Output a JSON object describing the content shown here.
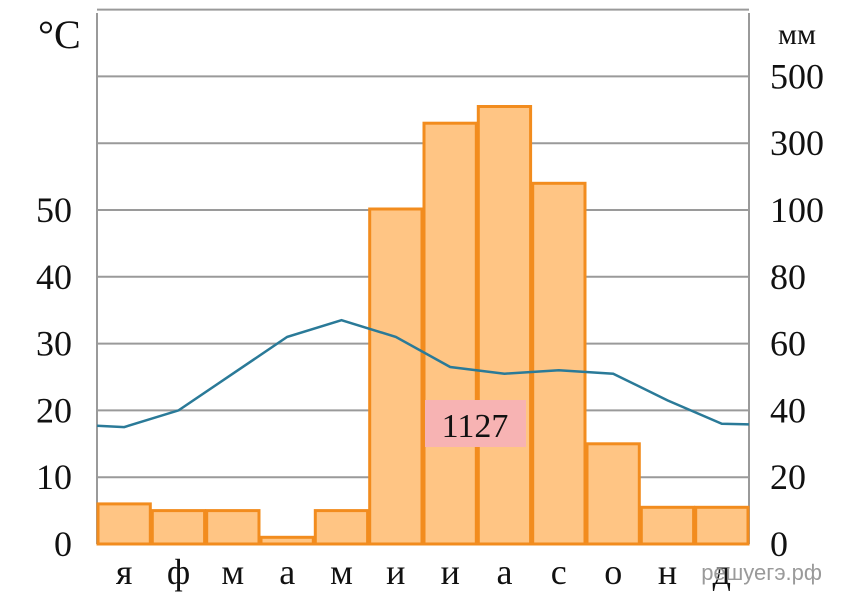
{
  "chart_data": {
    "type": "bar",
    "categories": [
      "я",
      "ф",
      "м",
      "а",
      "м",
      "и",
      "и",
      "а",
      "с",
      "о",
      "н",
      "д"
    ],
    "left_axis": {
      "unit": "°C",
      "ticks": [
        "0",
        "10",
        "20",
        "30",
        "40",
        "50"
      ],
      "range": [
        0,
        70
      ]
    },
    "right_axis": {
      "unit": "мм",
      "ticks": [
        "0",
        "20",
        "40",
        "60",
        "80",
        "100",
        "300",
        "500"
      ],
      "tick_values": [
        0,
        20,
        40,
        60,
        80,
        100,
        300,
        500
      ]
    },
    "series": [
      {
        "kind": "bar",
        "axis": "right",
        "color": "#ffc584",
        "stroke": "#f28c1e",
        "values": [
          12,
          10,
          10,
          2,
          10,
          103,
          360,
          410,
          180,
          30,
          11,
          11
        ]
      },
      {
        "kind": "line",
        "axis": "left",
        "color": "#2a7a98",
        "values": [
          17.5,
          20,
          25.5,
          31,
          33.5,
          31,
          26.5,
          25.5,
          26,
          25.5,
          21.5,
          18
        ]
      }
    ],
    "annotation": {
      "text": "1127",
      "color": "#f7b3b3"
    },
    "grid": true
  },
  "watermark": "решуегэ.рф"
}
